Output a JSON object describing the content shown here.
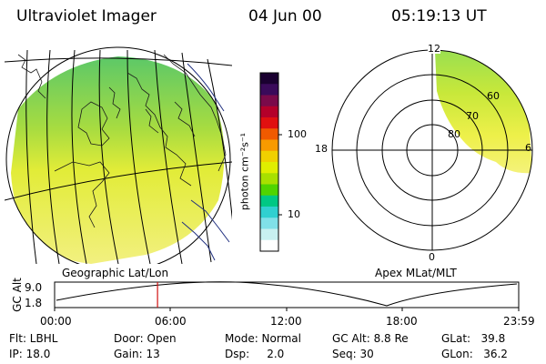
{
  "header": {
    "instrument": "Ultraviolet Imager",
    "date": "04 Jun 00",
    "time": "05:19:13 UT"
  },
  "left_panel": {
    "label": "Geographic Lat/Lon"
  },
  "right_panel": {
    "label": "Apex MLat/MLT",
    "mlt_labels": {
      "top": "12",
      "left": "18",
      "bottom": "0",
      "right": "6"
    },
    "lat_labels": [
      "60",
      "70",
      "80"
    ]
  },
  "colorbar": {
    "unit_label": "photon cm⁻²s⁻¹",
    "tick_100": "100",
    "tick_10": "10",
    "colors": [
      "#1a0030",
      "#3a0a5a",
      "#7a0a4a",
      "#b4002a",
      "#e01010",
      "#f05a00",
      "#f89a00",
      "#f0d000",
      "#e0ee00",
      "#a8e000",
      "#50d400",
      "#00c884",
      "#30d0d0",
      "#80e0e8",
      "#c8f0f0",
      "#ffffff"
    ]
  },
  "orbit": {
    "y_axis_label": "GC Alt",
    "y_ticks": [
      "9.0",
      "1.8"
    ],
    "x_ticks": [
      "00:00",
      "06:00",
      "12:00",
      "18:00",
      "23:59"
    ],
    "marker_time_fraction": 0.2217
  },
  "info": {
    "flt": "Flt: LBHL",
    "ip": "IP: 18.0",
    "door": "Door: Open",
    "gain": "Gain: 13",
    "mode": "Mode: Normal",
    "dsp": "Dsp:     2.0",
    "gcalt": "GC Alt: 8.8 Re",
    "seq": "Seq: 30",
    "glat": "GLat:   39.8",
    "glon": "GLon:   36.2"
  }
}
